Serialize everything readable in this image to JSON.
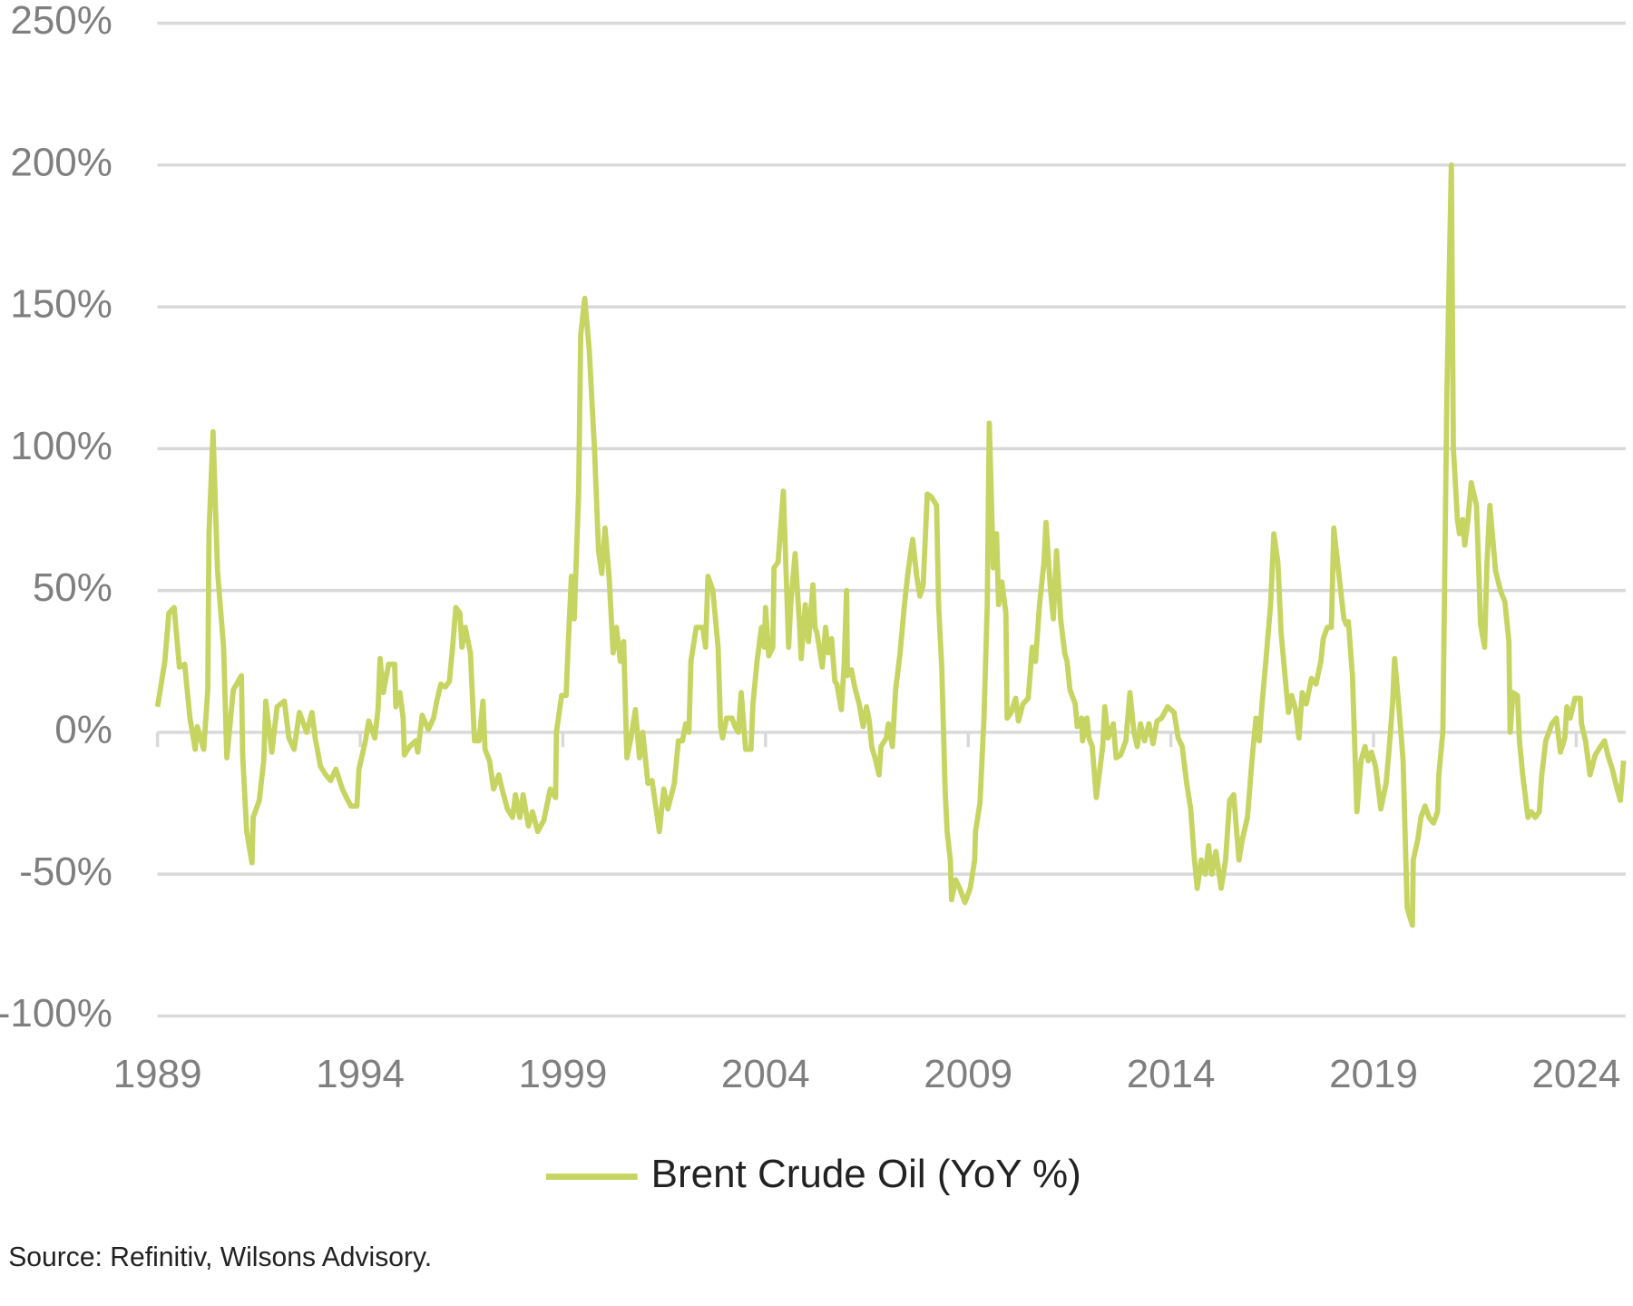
{
  "chart_data": {
    "type": "line",
    "series": [
      {
        "name": "Brent Crude Oil (YoY %)",
        "color": "#c6d461",
        "x": [
          1989.0,
          1989.18,
          1989.28,
          1989.41,
          1989.54,
          1989.67,
          1989.8,
          1989.93,
          1989.98,
          1990.14,
          1990.24,
          1990.27,
          1990.37,
          1990.48,
          1990.63,
          1990.71,
          1990.87,
          1991.07,
          1991.1,
          1991.2,
          1991.33,
          1991.36,
          1991.51,
          1991.62,
          1991.67,
          1991.82,
          1991.95,
          1992.13,
          1992.24,
          1992.37,
          1992.5,
          1992.68,
          1992.81,
          1992.89,
          1993.02,
          1993.15,
          1993.27,
          1993.4,
          1993.56,
          1993.66,
          1993.77,
          1993.92,
          1993.97,
          1994.13,
          1994.21,
          1994.36,
          1994.44,
          1994.49,
          1994.57,
          1994.7,
          1994.85,
          1994.88,
          1994.98,
          1995.06,
          1995.09,
          1995.22,
          1995.37,
          1995.42,
          1995.53,
          1995.68,
          1995.81,
          1995.89,
          1995.99,
          1996.1,
          1996.2,
          1996.28,
          1996.36,
          1996.46,
          1996.51,
          1996.59,
          1996.72,
          1996.82,
          1996.93,
          1997.03,
          1997.08,
          1997.19,
          1997.29,
          1997.42,
          1997.5,
          1997.63,
          1997.76,
          1997.83,
          1997.94,
          1998.02,
          1998.15,
          1998.25,
          1998.38,
          1998.53,
          1998.69,
          1998.82,
          1998.84,
          1998.97,
          1999.08,
          1999.13,
          1999.21,
          1999.28,
          1999.39,
          1999.44,
          1999.54,
          1999.65,
          1999.78,
          1999.88,
          1999.96,
          2000.04,
          2000.14,
          2000.24,
          2000.32,
          2000.42,
          2000.5,
          2000.58,
          2000.68,
          2000.79,
          2000.89,
          2000.97,
          2001.1,
          2001.2,
          2001.38,
          2001.49,
          2001.59,
          2001.75,
          2001.85,
          2001.95,
          2002.03,
          2002.11,
          2002.16,
          2002.29,
          2002.45,
          2002.52,
          2002.58,
          2002.7,
          2002.83,
          2002.89,
          2002.94,
          2003.04,
          2003.17,
          2003.25,
          2003.33,
          2003.4,
          2003.51,
          2003.64,
          2003.69,
          2003.79,
          2003.9,
          2003.97,
          2004.0,
          2004.08,
          2004.18,
          2004.21,
          2004.31,
          2004.44,
          2004.57,
          2004.62,
          2004.73,
          2004.83,
          2004.88,
          2004.98,
          2005.06,
          2005.17,
          2005.22,
          2005.27,
          2005.4,
          2005.48,
          2005.55,
          2005.63,
          2005.71,
          2005.76,
          2005.87,
          2005.94,
          2006.0,
          2006.02,
          2006.12,
          2006.2,
          2006.31,
          2006.41,
          2006.49,
          2006.56,
          2006.62,
          2006.72,
          2006.8,
          2006.85,
          2006.98,
          2007.03,
          2007.13,
          2007.21,
          2007.32,
          2007.42,
          2007.52,
          2007.63,
          2007.73,
          2007.81,
          2007.89,
          2007.99,
          2008.09,
          2008.22,
          2008.27,
          2008.35,
          2008.43,
          2008.48,
          2008.56,
          2008.59,
          2008.69,
          2008.79,
          2008.92,
          2009.05,
          2009.16,
          2009.18,
          2009.29,
          2009.39,
          2009.47,
          2009.52,
          2009.62,
          2009.7,
          2009.75,
          2009.83,
          2009.93,
          2009.96,
          2010.06,
          2010.17,
          2010.24,
          2010.35,
          2010.48,
          2010.58,
          2010.66,
          2010.76,
          2010.87,
          2010.92,
          2011.02,
          2011.1,
          2011.18,
          2011.28,
          2011.38,
          2011.44,
          2011.51,
          2011.64,
          2011.69,
          2011.8,
          2011.82,
          2011.93,
          2011.98,
          2012.06,
          2012.16,
          2012.32,
          2012.37,
          2012.45,
          2012.58,
          2012.65,
          2012.76,
          2012.89,
          2012.99,
          2013.09,
          2013.17,
          2013.25,
          2013.35,
          2013.46,
          2013.56,
          2013.66,
          2013.77,
          2013.92,
          2014.08,
          2014.18,
          2014.28,
          2014.39,
          2014.49,
          2014.57,
          2014.65,
          2014.75,
          2014.85,
          2014.93,
          2015.01,
          2015.11,
          2015.24,
          2015.35,
          2015.45,
          2015.55,
          2015.68,
          2015.76,
          2015.89,
          2016.0,
          2016.1,
          2016.18,
          2016.25,
          2016.36,
          2016.46,
          2016.54,
          2016.64,
          2016.72,
          2016.9,
          2016.98,
          2017.08,
          2017.16,
          2017.24,
          2017.34,
          2017.47,
          2017.58,
          2017.7,
          2017.76,
          2017.86,
          2017.96,
          2018.02,
          2018.15,
          2018.27,
          2018.33,
          2018.38,
          2018.48,
          2018.59,
          2018.69,
          2018.79,
          2018.87,
          2018.95,
          2019.05,
          2019.18,
          2019.31,
          2019.39,
          2019.47,
          2019.52,
          2019.62,
          2019.73,
          2019.83,
          2019.96,
          2019.98,
          2020.09,
          2020.17,
          2020.27,
          2020.37,
          2020.48,
          2020.58,
          2020.61,
          2020.71,
          2020.81,
          2020.92,
          2020.97,
          2021.07,
          2021.12,
          2021.2,
          2021.25,
          2021.33,
          2021.41,
          2021.54,
          2021.59,
          2021.64,
          2021.74,
          2021.8,
          2021.87,
          2022.01,
          2022.13,
          2022.24,
          2022.34,
          2022.37,
          2022.44,
          2022.55,
          2022.6,
          2022.68,
          2022.81,
          2022.89,
          2022.99,
          2023.09,
          2023.15,
          2023.25,
          2023.4,
          2023.51,
          2023.61,
          2023.72,
          2023.77,
          2023.85,
          2023.97,
          2024.1,
          2024.13,
          2024.23,
          2024.34,
          2024.47,
          2024.6,
          2024.7,
          2024.78,
          2024.89,
          2025.01,
          2025.09,
          2025.17
        ],
        "values": [
          9,
          25,
          42,
          44,
          23,
          24,
          5,
          -6,
          2,
          -6,
          15,
          70,
          106,
          57,
          30,
          -9,
          15,
          20,
          -8,
          -35,
          -46,
          -30,
          -24,
          -10,
          11,
          -7,
          9,
          11,
          -2,
          -6,
          7,
          0,
          7,
          -2,
          -12,
          -15,
          -17,
          -13,
          -20,
          -23,
          -26,
          -26,
          -13,
          -3,
          4,
          -2,
          8,
          26,
          14,
          24,
          24,
          9,
          14,
          5,
          -8,
          -5,
          -3,
          -7,
          6,
          1,
          5,
          11,
          17,
          16,
          18,
          30,
          44,
          42,
          30,
          37,
          28,
          -3,
          -3,
          11,
          -6,
          -10,
          -20,
          -15,
          -20,
          -27,
          -30,
          -22,
          -30,
          -22,
          -33,
          -28,
          -35,
          -31,
          -20,
          -23,
          0,
          13,
          13,
          30,
          55,
          40,
          85,
          140,
          153,
          135,
          100,
          64,
          56,
          72,
          55,
          28,
          37,
          25,
          32,
          -9,
          -2,
          8,
          -9,
          0,
          -18,
          -17,
          -35,
          -20,
          -27,
          -18,
          -3,
          -3,
          3,
          0,
          25,
          37,
          37,
          30,
          55,
          50,
          30,
          2,
          -2,
          5,
          5,
          2,
          0,
          14,
          -6,
          -6,
          10,
          25,
          37,
          30,
          44,
          27,
          30,
          58,
          60,
          85,
          30,
          45,
          63,
          40,
          26,
          45,
          32,
          52,
          37,
          35,
          23,
          37,
          28,
          33,
          18,
          17,
          8,
          24,
          50,
          20,
          22,
          16,
          10,
          2,
          9,
          4,
          -5,
          -10,
          -15,
          -5,
          -2,
          3,
          -5,
          15,
          28,
          44,
          57,
          68,
          55,
          48,
          52,
          84,
          83,
          80,
          45,
          22,
          -20,
          -35,
          -45,
          -59,
          -52,
          -55,
          -60,
          -55,
          -45,
          -35,
          -25,
          5,
          45,
          109,
          58,
          70,
          45,
          53,
          42,
          5,
          7,
          12,
          4,
          10,
          12,
          30,
          25,
          45,
          60,
          74,
          52,
          40,
          64,
          40,
          28,
          25,
          15,
          10,
          2,
          5,
          -3,
          5,
          -2,
          -5,
          -23,
          -5,
          9,
          -2,
          3,
          -9,
          -8,
          -3,
          14,
          0,
          -5,
          3,
          -3,
          3,
          -4,
          4,
          5,
          9,
          7,
          -2,
          -5,
          -18,
          -27,
          -43,
          -55,
          -45,
          -50,
          -40,
          -50,
          -42,
          -55,
          -45,
          -24,
          -22,
          -45,
          -38,
          -30,
          -10,
          5,
          -3,
          10,
          28,
          45,
          70,
          60,
          35,
          7,
          13,
          8,
          -2,
          14,
          10,
          19,
          17,
          25,
          33,
          37,
          37,
          72,
          55,
          40,
          38,
          39,
          20,
          -28,
          -10,
          -5,
          -10,
          -7,
          -12,
          -27,
          -18,
          -5,
          10,
          26,
          10,
          -10,
          -62,
          -68,
          -45,
          -38,
          -30,
          -26,
          -30,
          -32,
          -28,
          -15,
          0,
          120,
          200,
          100,
          75,
          70,
          75,
          66,
          75,
          88,
          80,
          60,
          38,
          30,
          60,
          80,
          57,
          50,
          46,
          32,
          0,
          14,
          13,
          -3,
          -15,
          -30,
          -28,
          -30,
          -28,
          -15,
          -3,
          3,
          5,
          -7,
          -2,
          9,
          5,
          12,
          12,
          3,
          -3,
          -15,
          -8,
          -5,
          -3,
          -8,
          -13,
          -20,
          -24,
          -10
        ]
      }
    ],
    "xlim": [
      1989,
      2025.22
    ],
    "xticks": [
      1989,
      1994,
      1999,
      2004,
      2009,
      2014,
      2019,
      2024
    ],
    "ylim": [
      -100,
      250
    ],
    "yticks": [
      {
        "value": -100,
        "label": "-100%"
      },
      {
        "value": -50,
        "label": "-50%"
      },
      {
        "value": 0,
        "label": "0%"
      },
      {
        "value": 50,
        "label": "50%"
      },
      {
        "value": 100,
        "label": "100%"
      },
      {
        "value": 150,
        "label": "150%"
      },
      {
        "value": 200,
        "label": "200%"
      },
      {
        "value": 250,
        "label": "250%"
      }
    ],
    "grid": true,
    "legend": "bottom",
    "source": "Source: Refinitiv, Wilsons Advisory."
  }
}
